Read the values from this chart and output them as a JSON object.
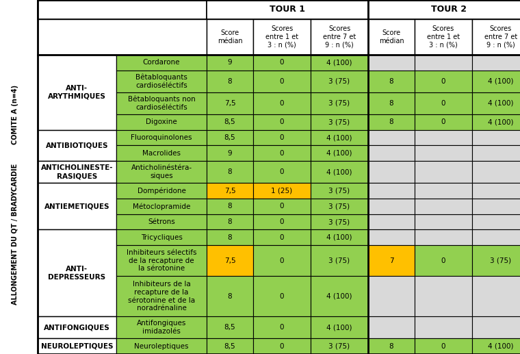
{
  "title_left_line1": "COMITE A (n=4)",
  "title_left_line2": "ALLONGEMENT DU QT / BRADYCARDIE",
  "header_tour1": "TOUR 1",
  "header_tour2": "TOUR 2",
  "col_headers": [
    "Score\nmédian",
    "Scores\nentre 1 et\n3 : n (%)",
    "Scores\nentre 7 et\n9 : n (%)",
    "Score\nmédian",
    "Scores\nentre 1 et\n3 : n (%)",
    "Scores\nentre 7 et\n9 : n (%)"
  ],
  "color_green": "#92D050",
  "color_orange": "#FFC000",
  "color_gray": "#D9D9D9",
  "color_white": "#FFFFFF",
  "color_black": "#000000",
  "rows": [
    {
      "cat1": "ANTI-\nARYTHMIQUES",
      "cat2": "Cordarone",
      "t1_score": "9",
      "t1_low": "0",
      "t1_high": "4 (100)",
      "t2_score": "",
      "t2_low": "",
      "t2_high": "",
      "t1_score_color": "#92D050",
      "t1_low_color": "#92D050",
      "t1_high_color": "#92D050",
      "t2_score_color": "#D9D9D9",
      "t2_low_color": "#D9D9D9",
      "t2_high_color": "#D9D9D9"
    },
    {
      "cat1": "",
      "cat2": "Bêtabloquants\ncardioséléctifs",
      "t1_score": "8",
      "t1_low": "0",
      "t1_high": "3 (75)",
      "t2_score": "8",
      "t2_low": "0",
      "t2_high": "4 (100)",
      "t1_score_color": "#92D050",
      "t1_low_color": "#92D050",
      "t1_high_color": "#92D050",
      "t2_score_color": "#92D050",
      "t2_low_color": "#92D050",
      "t2_high_color": "#92D050"
    },
    {
      "cat1": "",
      "cat2": "Bêtabloquants non\ncardioséléctifs",
      "t1_score": "7,5",
      "t1_low": "0",
      "t1_high": "3 (75)",
      "t2_score": "8",
      "t2_low": "0",
      "t2_high": "4 (100)",
      "t1_score_color": "#92D050",
      "t1_low_color": "#92D050",
      "t1_high_color": "#92D050",
      "t2_score_color": "#92D050",
      "t2_low_color": "#92D050",
      "t2_high_color": "#92D050"
    },
    {
      "cat1": "",
      "cat2": "Digoxine",
      "t1_score": "8,5",
      "t1_low": "0",
      "t1_high": "3 (75)",
      "t2_score": "8",
      "t2_low": "0",
      "t2_high": "4 (100)",
      "t1_score_color": "#92D050",
      "t1_low_color": "#92D050",
      "t1_high_color": "#92D050",
      "t2_score_color": "#92D050",
      "t2_low_color": "#92D050",
      "t2_high_color": "#92D050"
    },
    {
      "cat1": "ANTIBIOTIQUES",
      "cat2": "Fluoroquinolones",
      "t1_score": "8,5",
      "t1_low": "0",
      "t1_high": "4 (100)",
      "t2_score": "",
      "t2_low": "",
      "t2_high": "",
      "t1_score_color": "#92D050",
      "t1_low_color": "#92D050",
      "t1_high_color": "#92D050",
      "t2_score_color": "#D9D9D9",
      "t2_low_color": "#D9D9D9",
      "t2_high_color": "#D9D9D9"
    },
    {
      "cat1": "",
      "cat2": "Macrolides",
      "t1_score": "9",
      "t1_low": "0",
      "t1_high": "4 (100)",
      "t2_score": "",
      "t2_low": "",
      "t2_high": "",
      "t1_score_color": "#92D050",
      "t1_low_color": "#92D050",
      "t1_high_color": "#92D050",
      "t2_score_color": "#D9D9D9",
      "t2_low_color": "#D9D9D9",
      "t2_high_color": "#D9D9D9"
    },
    {
      "cat1": "ANTICHOLINESTE-\nRASIQUES",
      "cat2": "Anticholinéstéra-\nsiques",
      "t1_score": "8",
      "t1_low": "0",
      "t1_high": "4 (100)",
      "t2_score": "",
      "t2_low": "",
      "t2_high": "",
      "t1_score_color": "#92D050",
      "t1_low_color": "#92D050",
      "t1_high_color": "#92D050",
      "t2_score_color": "#D9D9D9",
      "t2_low_color": "#D9D9D9",
      "t2_high_color": "#D9D9D9"
    },
    {
      "cat1": "ANTIEMETIQUES",
      "cat2": "Dompéridone",
      "t1_score": "7,5",
      "t1_low": "1 (25)",
      "t1_high": "3 (75)",
      "t2_score": "",
      "t2_low": "",
      "t2_high": "",
      "t1_score_color": "#FFC000",
      "t1_low_color": "#FFC000",
      "t1_high_color": "#92D050",
      "t2_score_color": "#D9D9D9",
      "t2_low_color": "#D9D9D9",
      "t2_high_color": "#D9D9D9"
    },
    {
      "cat1": "",
      "cat2": "Métoclopramide",
      "t1_score": "8",
      "t1_low": "0",
      "t1_high": "3 (75)",
      "t2_score": "",
      "t2_low": "",
      "t2_high": "",
      "t1_score_color": "#92D050",
      "t1_low_color": "#92D050",
      "t1_high_color": "#92D050",
      "t2_score_color": "#D9D9D9",
      "t2_low_color": "#D9D9D9",
      "t2_high_color": "#D9D9D9"
    },
    {
      "cat1": "",
      "cat2": "Sétrons",
      "t1_score": "8",
      "t1_low": "0",
      "t1_high": "3 (75)",
      "t2_score": "",
      "t2_low": "",
      "t2_high": "",
      "t1_score_color": "#92D050",
      "t1_low_color": "#92D050",
      "t1_high_color": "#92D050",
      "t2_score_color": "#D9D9D9",
      "t2_low_color": "#D9D9D9",
      "t2_high_color": "#D9D9D9"
    },
    {
      "cat1": "ANTI-\nDEPRESSEURS",
      "cat2": "Tricycliques",
      "t1_score": "8",
      "t1_low": "0",
      "t1_high": "4 (100)",
      "t2_score": "",
      "t2_low": "",
      "t2_high": "",
      "t1_score_color": "#92D050",
      "t1_low_color": "#92D050",
      "t1_high_color": "#92D050",
      "t2_score_color": "#D9D9D9",
      "t2_low_color": "#D9D9D9",
      "t2_high_color": "#D9D9D9"
    },
    {
      "cat1": "",
      "cat2": "Inhibiteurs sélectifs\nde la recapture de\nla sérotonine",
      "t1_score": "7,5",
      "t1_low": "0",
      "t1_high": "3 (75)",
      "t2_score": "7",
      "t2_low": "0",
      "t2_high": "3 (75)",
      "t1_score_color": "#FFC000",
      "t1_low_color": "#92D050",
      "t1_high_color": "#92D050",
      "t2_score_color": "#FFC000",
      "t2_low_color": "#92D050",
      "t2_high_color": "#92D050"
    },
    {
      "cat1": "",
      "cat2": "Inhibiteurs de la\nrecapture de la\nsérotonine et de la\nnoradrénaline",
      "t1_score": "8",
      "t1_low": "0",
      "t1_high": "4 (100)",
      "t2_score": "",
      "t2_low": "",
      "t2_high": "",
      "t1_score_color": "#92D050",
      "t1_low_color": "#92D050",
      "t1_high_color": "#92D050",
      "t2_score_color": "#D9D9D9",
      "t2_low_color": "#D9D9D9",
      "t2_high_color": "#D9D9D9"
    },
    {
      "cat1": "ANTIFONGIQUES",
      "cat2": "Antifongiques\nimidazolés",
      "t1_score": "8,5",
      "t1_low": "0",
      "t1_high": "4 (100)",
      "t2_score": "",
      "t2_low": "",
      "t2_high": "",
      "t1_score_color": "#92D050",
      "t1_low_color": "#92D050",
      "t1_high_color": "#92D050",
      "t2_score_color": "#D9D9D9",
      "t2_low_color": "#D9D9D9",
      "t2_high_color": "#D9D9D9"
    },
    {
      "cat1": "NEUROLEPTIQUES",
      "cat2": "Neuroleptiques",
      "t1_score": "8,5",
      "t1_low": "0",
      "t1_high": "3 (75)",
      "t2_score": "8",
      "t2_low": "0",
      "t2_high": "4 (100)",
      "t1_score_color": "#92D050",
      "t1_low_color": "#92D050",
      "t1_high_color": "#92D050",
      "t2_score_color": "#92D050",
      "t2_low_color": "#92D050",
      "t2_high_color": "#92D050"
    }
  ],
  "fig_w": 7.6,
  "fig_h": 5.17,
  "dpi": 100
}
